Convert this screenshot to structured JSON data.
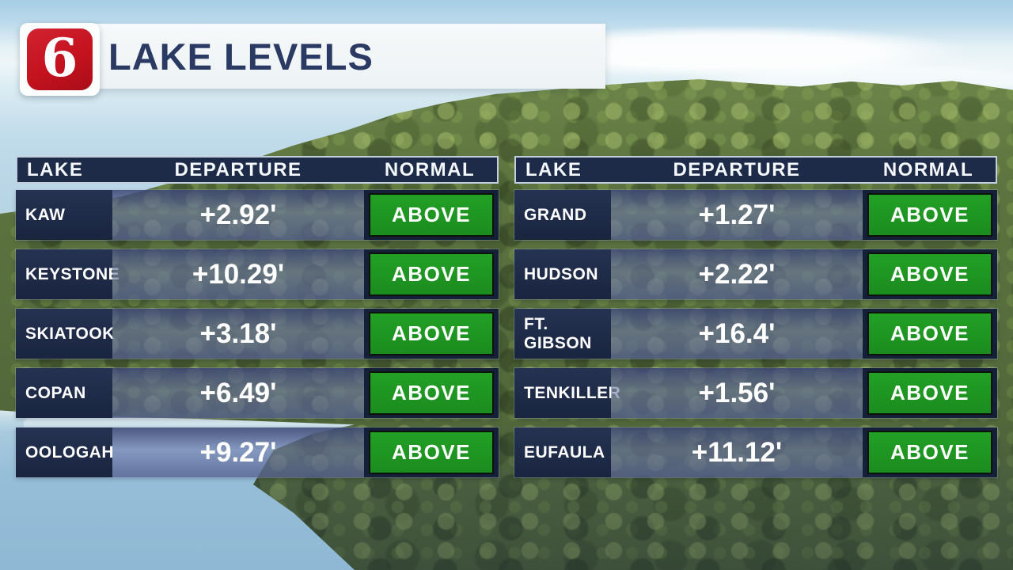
{
  "logo": {
    "channel": "6"
  },
  "header": {
    "title": "LAKE LEVELS"
  },
  "columns": {
    "lake": "LAKE",
    "departure": "DEPARTURE",
    "normal": "NORMAL"
  },
  "tables": [
    {
      "rows": [
        {
          "lake": "KAW",
          "departure": "+2.92'",
          "normal": "ABOVE"
        },
        {
          "lake": "KEYSTONE",
          "departure": "+10.29'",
          "normal": "ABOVE"
        },
        {
          "lake": "SKIATOOK",
          "departure": "+3.18'",
          "normal": "ABOVE"
        },
        {
          "lake": "COPAN",
          "departure": "+6.49'",
          "normal": "ABOVE"
        },
        {
          "lake": "OOLOGAH",
          "departure": "+9.27'",
          "normal": "ABOVE"
        }
      ]
    },
    {
      "rows": [
        {
          "lake": "GRAND",
          "departure": "+1.27'",
          "normal": "ABOVE"
        },
        {
          "lake": "HUDSON",
          "departure": "+2.22'",
          "normal": "ABOVE"
        },
        {
          "lake": "FT. GIBSON",
          "departure": "+16.4'",
          "normal": "ABOVE"
        },
        {
          "lake": "TENKILLER",
          "departure": "+1.56'",
          "normal": "ABOVE"
        },
        {
          "lake": "EUFAULA",
          "departure": "+11.12'",
          "normal": "ABOVE"
        }
      ]
    }
  ],
  "colors": {
    "header_navy": "#1d2b48",
    "row_navy": "#1c2941",
    "departure_slate": "#6b76a6",
    "above_green": "#1f9322",
    "badge_border": "#0b130b",
    "title_navy": "#2a3a63",
    "logo_red": "#c4121f",
    "banner_white": "#f1f5f7"
  },
  "chart_data": {
    "type": "table",
    "title": "LAKE LEVELS",
    "columns": [
      "LAKE",
      "DEPARTURE",
      "NORMAL"
    ],
    "rows": [
      [
        "KAW",
        "+2.92'",
        "ABOVE"
      ],
      [
        "KEYSTONE",
        "+10.29'",
        "ABOVE"
      ],
      [
        "SKIATOOK",
        "+3.18'",
        "ABOVE"
      ],
      [
        "COPAN",
        "+6.49'",
        "ABOVE"
      ],
      [
        "OOLOGAH",
        "+9.27'",
        "ABOVE"
      ],
      [
        "GRAND",
        "+1.27'",
        "ABOVE"
      ],
      [
        "HUDSON",
        "+2.22'",
        "ABOVE"
      ],
      [
        "FT. GIBSON",
        "+16.4'",
        "ABOVE"
      ],
      [
        "TENKILLER",
        "+1.56'",
        "ABOVE"
      ],
      [
        "EUFAULA",
        "+11.12'",
        "ABOVE"
      ]
    ],
    "departure_values_ft": [
      2.92,
      10.29,
      3.18,
      6.49,
      9.27,
      1.27,
      2.22,
      16.4,
      1.56,
      11.12
    ]
  }
}
